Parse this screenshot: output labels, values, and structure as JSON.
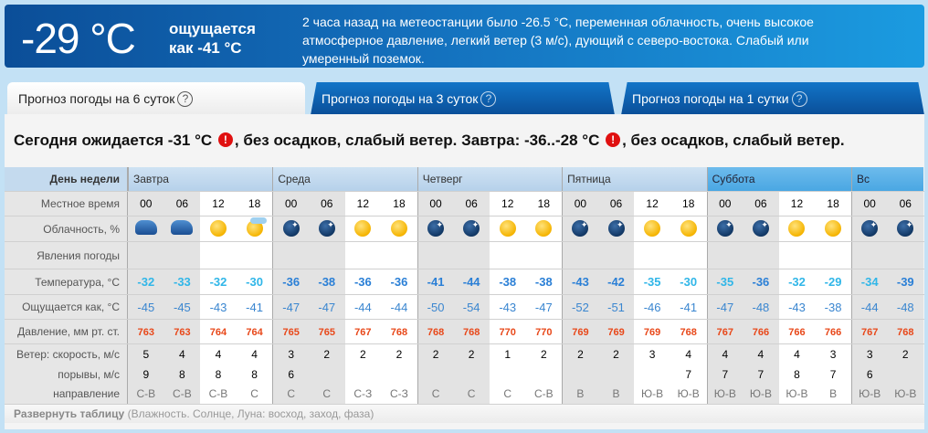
{
  "banner": {
    "temperature": "-29 °C",
    "feels_line1": "ощущается",
    "feels_line2": "как -41 °C",
    "description": "2 часа назад на метеостанции было -26.5 °C, переменная облачность, очень высокое атмосферное давление, легкий ветер (3 м/с), дующий с северо-востока. Слабый или умеренный поземок."
  },
  "tabs": [
    {
      "label": "Прогноз погоды на 6 суток",
      "active": true
    },
    {
      "label": "Прогноз погоды на 3 суток",
      "active": false
    },
    {
      "label": "Прогноз погоды на 1 сутки",
      "active": false
    }
  ],
  "help_glyph": "?",
  "summary": {
    "part1": "Сегодня ожидается -31 °C",
    "part2": ", без осадков, слабый ветер. Завтра: -36..-28 °C",
    "part3": ", без осадков, слабый ветер.",
    "warn_glyph": "!"
  },
  "labels": {
    "day": "День недели",
    "time": "Местное время",
    "clouds": "Облачность, %",
    "phenomena": "Явления погоды",
    "temp": "Температура, °C",
    "feels": "Ощущается как, °C",
    "pressure": "Давление, мм рт. ст.",
    "wind": "Ветер: скорость, м/с",
    "gusts": "порывы, м/с",
    "direction": "направление"
  },
  "colors": {
    "temp_light": "#30b6e8",
    "temp_dark": "#2a7fd6",
    "pressure": "#e8481a",
    "weekend_header": "#4aa7e3"
  },
  "days": [
    {
      "name": "Завтра",
      "weekend": false,
      "slots": [
        {
          "time": "00",
          "icon": "cloudy-night",
          "temp": "-32",
          "feels": "-45",
          "pressure": "763",
          "wind": "5",
          "gust": "9",
          "dir": "С-В"
        },
        {
          "time": "06",
          "icon": "cloudy-night",
          "temp": "-33",
          "feels": "-45",
          "pressure": "763",
          "wind": "4",
          "gust": "8",
          "dir": "С-В"
        },
        {
          "time": "12",
          "icon": "sun",
          "temp": "-32",
          "feels": "-43",
          "pressure": "764",
          "wind": "4",
          "gust": "8",
          "dir": "С-В"
        },
        {
          "time": "18",
          "icon": "sun-cloud",
          "temp": "-30",
          "feels": "-41",
          "pressure": "764",
          "wind": "4",
          "gust": "8",
          "dir": "С"
        }
      ]
    },
    {
      "name": "Среда",
      "weekend": false,
      "slots": [
        {
          "time": "00",
          "icon": "clear-night",
          "temp": "-36",
          "feels": "-47",
          "pressure": "765",
          "wind": "3",
          "gust": "6",
          "dir": "С"
        },
        {
          "time": "06",
          "icon": "clear-night",
          "temp": "-38",
          "feels": "-47",
          "pressure": "765",
          "wind": "2",
          "gust": "",
          "dir": "С"
        },
        {
          "time": "12",
          "icon": "sun",
          "temp": "-36",
          "feels": "-44",
          "pressure": "767",
          "wind": "2",
          "gust": "",
          "dir": "С-З"
        },
        {
          "time": "18",
          "icon": "sun",
          "temp": "-36",
          "feels": "-44",
          "pressure": "768",
          "wind": "2",
          "gust": "",
          "dir": "С-З"
        }
      ]
    },
    {
      "name": "Четверг",
      "weekend": false,
      "slots": [
        {
          "time": "00",
          "icon": "clear-night",
          "temp": "-41",
          "feels": "-50",
          "pressure": "768",
          "wind": "2",
          "gust": "",
          "dir": "С"
        },
        {
          "time": "06",
          "icon": "clear-night",
          "temp": "-44",
          "feels": "-54",
          "pressure": "768",
          "wind": "2",
          "gust": "",
          "dir": "С"
        },
        {
          "time": "12",
          "icon": "sun",
          "temp": "-38",
          "feels": "-43",
          "pressure": "770",
          "wind": "1",
          "gust": "",
          "dir": "С"
        },
        {
          "time": "18",
          "icon": "sun",
          "temp": "-38",
          "feels": "-47",
          "pressure": "770",
          "wind": "2",
          "gust": "",
          "dir": "С-В"
        }
      ]
    },
    {
      "name": "Пятница",
      "weekend": false,
      "slots": [
        {
          "time": "00",
          "icon": "clear-night",
          "temp": "-43",
          "feels": "-52",
          "pressure": "769",
          "wind": "2",
          "gust": "",
          "dir": "В"
        },
        {
          "time": "06",
          "icon": "clear-night",
          "temp": "-42",
          "feels": "-51",
          "pressure": "769",
          "wind": "2",
          "gust": "",
          "dir": "В"
        },
        {
          "time": "12",
          "icon": "sun",
          "temp": "-35",
          "feels": "-46",
          "pressure": "769",
          "wind": "3",
          "gust": "",
          "dir": "Ю-В"
        },
        {
          "time": "18",
          "icon": "sun",
          "temp": "-30",
          "feels": "-41",
          "pressure": "768",
          "wind": "4",
          "gust": "7",
          "dir": "Ю-В"
        }
      ]
    },
    {
      "name": "Суббота",
      "weekend": true,
      "slots": [
        {
          "time": "00",
          "icon": "clear-night",
          "temp": "-35",
          "feels": "-47",
          "pressure": "767",
          "wind": "4",
          "gust": "7",
          "dir": "Ю-В"
        },
        {
          "time": "06",
          "icon": "clear-night",
          "temp": "-36",
          "feels": "-48",
          "pressure": "766",
          "wind": "4",
          "gust": "7",
          "dir": "Ю-В"
        },
        {
          "time": "12",
          "icon": "sun",
          "temp": "-32",
          "feels": "-43",
          "pressure": "766",
          "wind": "4",
          "gust": "8",
          "dir": "Ю-В"
        },
        {
          "time": "18",
          "icon": "sun",
          "temp": "-29",
          "feels": "-38",
          "pressure": "766",
          "wind": "3",
          "gust": "7",
          "dir": "В"
        }
      ]
    },
    {
      "name": "Вс",
      "weekend": true,
      "slots": [
        {
          "time": "00",
          "icon": "clear-night",
          "temp": "-34",
          "feels": "-44",
          "pressure": "767",
          "wind": "3",
          "gust": "6",
          "dir": "Ю-В"
        },
        {
          "time": "06",
          "icon": "clear-night",
          "temp": "-39",
          "feels": "-48",
          "pressure": "768",
          "wind": "2",
          "gust": "",
          "dir": "Ю-В"
        }
      ]
    }
  ],
  "expand": {
    "label": "Развернуть таблицу",
    "hint": "(Влажность. Солнце, Луна: восход, заход, фаза)"
  }
}
